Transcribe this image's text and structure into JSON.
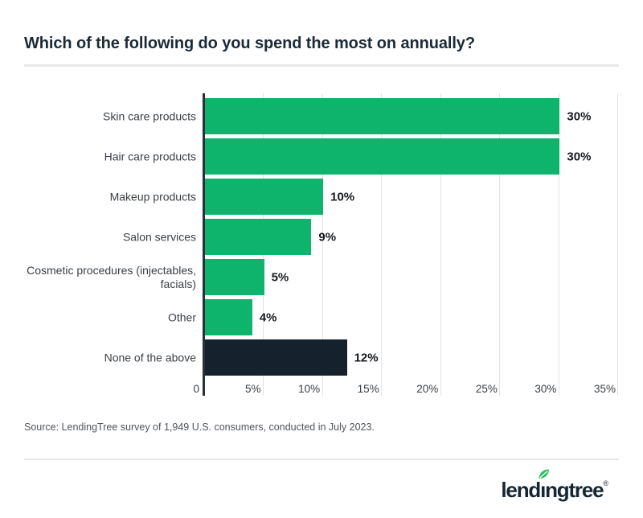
{
  "title": "Which of the following do you spend the most on annually?",
  "chart_data": {
    "type": "bar",
    "orientation": "horizontal",
    "title": "Which of the following do you spend the most on annually?",
    "categories": [
      "Skin care products",
      "Hair care products",
      "Makeup products",
      "Salon services",
      "Cosmetic procedures (injectables, facials)",
      "Other",
      "None of the above"
    ],
    "values": [
      30,
      30,
      10,
      9,
      5,
      4,
      12
    ],
    "value_labels": [
      "30%",
      "30%",
      "10%",
      "9%",
      "5%",
      "4%",
      "12%"
    ],
    "bar_colors": [
      "#0eb46c",
      "#0eb46c",
      "#0eb46c",
      "#0eb46c",
      "#0eb46c",
      "#0eb46c",
      "#16212e"
    ],
    "xlabel": "",
    "ylabel": "",
    "xlim": [
      0,
      35
    ],
    "x_ticks": [
      {
        "value": 0,
        "label": "0"
      },
      {
        "value": 5,
        "label": "5%"
      },
      {
        "value": 10,
        "label": "10%"
      },
      {
        "value": 15,
        "label": "15%"
      },
      {
        "value": 20,
        "label": "20%"
      },
      {
        "value": 25,
        "label": "25%"
      },
      {
        "value": 30,
        "label": "30%"
      },
      {
        "value": 35,
        "label": "35%"
      }
    ],
    "grid": "vertical-only",
    "legend": "none"
  },
  "source": "Source: LendingTree survey of 1,949 U.S. consumers, conducted in July 2023.",
  "logo": {
    "prefix": "lend",
    "i_char": "ı",
    "suffix": "ngtree",
    "registered": "®",
    "brand_navy": "#152734",
    "brand_green": "#2abd5f"
  },
  "colors": {
    "bar_green": "#0eb46c",
    "bar_navy": "#16212e",
    "axis_line": "#28313b",
    "gridline": "#e3e3e3",
    "title_text": "#1b2a38",
    "category_text": "#3a3f45",
    "value_text": "#16191d",
    "tick_text": "#3b4045",
    "source_text": "#515459",
    "divider": "#e9e9e9",
    "background": "#ffffff"
  }
}
